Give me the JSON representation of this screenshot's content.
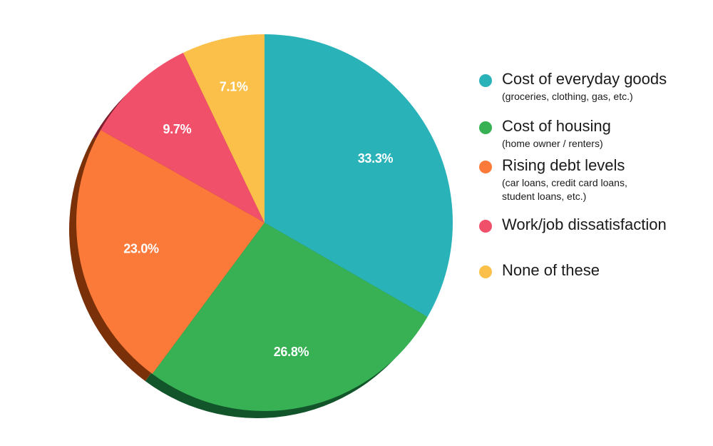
{
  "chart_data": {
    "type": "pie",
    "categories": [
      "Cost of everyday goods",
      "Cost of housing",
      "Rising debt levels",
      "Work/job dissatisfaction",
      "None of these"
    ],
    "values": [
      33.3,
      26.8,
      23.0,
      9.7,
      7.1
    ],
    "value_labels": [
      "33.3%",
      "26.8%",
      "23.0%",
      "9.7%",
      "7.1%"
    ],
    "colors": [
      "#29b2b8",
      "#37b154",
      "#fb7a39",
      "#f0506a",
      "#fbc04a"
    ],
    "shadow_colors": [
      "#16666a",
      "#12552a",
      "#7a3008",
      "#7a1f2f",
      "#8a6a12"
    ],
    "start": "12 o'clock",
    "direction": "clockwise",
    "legend_position": "right"
  },
  "legend": [
    {
      "label": "Cost of everyday goods",
      "sub": "(groceries, clothing, gas, etc.)",
      "color": "#29b2b8"
    },
    {
      "label": "Cost of housing",
      "sub": "(home owner / renters)",
      "color": "#37b154"
    },
    {
      "label": "Rising debt levels",
      "sub": "(car loans, credit card loans,\nstudent loans, etc.)",
      "color": "#fb7a39"
    },
    {
      "label": "Work/job dissatisfaction",
      "sub": "",
      "color": "#f0506a"
    },
    {
      "label": "None of these",
      "sub": "",
      "color": "#fbc04a"
    }
  ]
}
